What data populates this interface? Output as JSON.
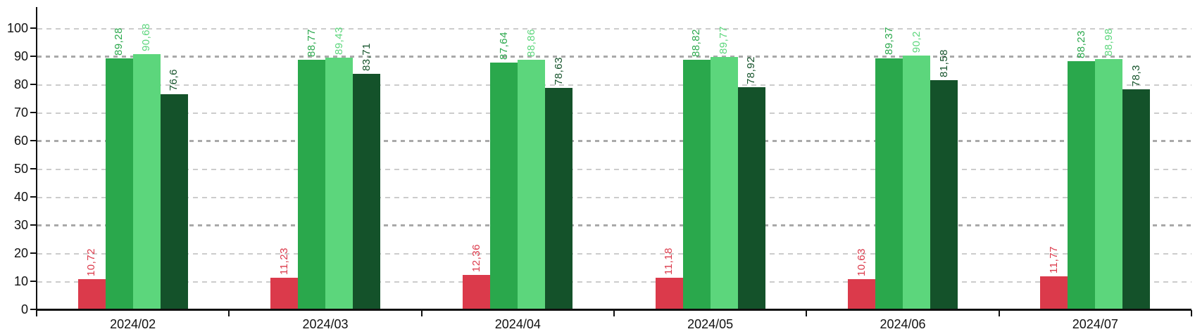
{
  "chart_data": {
    "type": "bar",
    "title": "",
    "xlabel": "",
    "ylabel": "",
    "categories": [
      "2024/02",
      "2024/03",
      "2024/04",
      "2024/05",
      "2024/06",
      "2024/07"
    ],
    "series": [
      {
        "name": "red",
        "color": "#db3a4b",
        "values": [
          10.72,
          11.23,
          12.36,
          11.18,
          10.63,
          11.77
        ]
      },
      {
        "name": "green",
        "color": "#2aa84c",
        "values": [
          89.28,
          88.77,
          87.64,
          88.82,
          89.37,
          88.23
        ]
      },
      {
        "name": "light-green",
        "color": "#5cd67c",
        "values": [
          90.68,
          89.43,
          88.86,
          89.77,
          90.2,
          88.98
        ]
      },
      {
        "name": "dark-green",
        "color": "#14522a",
        "values": [
          76.6,
          83.71,
          78.63,
          78.92,
          81.58,
          78.3
        ]
      }
    ],
    "ylim": [
      0,
      100
    ],
    "y_ticks": [
      0,
      10,
      20,
      30,
      40,
      50,
      60,
      70,
      80,
      90,
      100
    ],
    "bold_gridlines": [
      30,
      60,
      90
    ],
    "grid": true,
    "legend_position": "none",
    "value_labels": true,
    "value_label_rotation": -90,
    "decimal_separator": ","
  },
  "style_colors": {
    "axis": "#111111",
    "grid_light": "#cccccc",
    "grid_bold": "#a9a9a9",
    "background": "#ffffff"
  }
}
